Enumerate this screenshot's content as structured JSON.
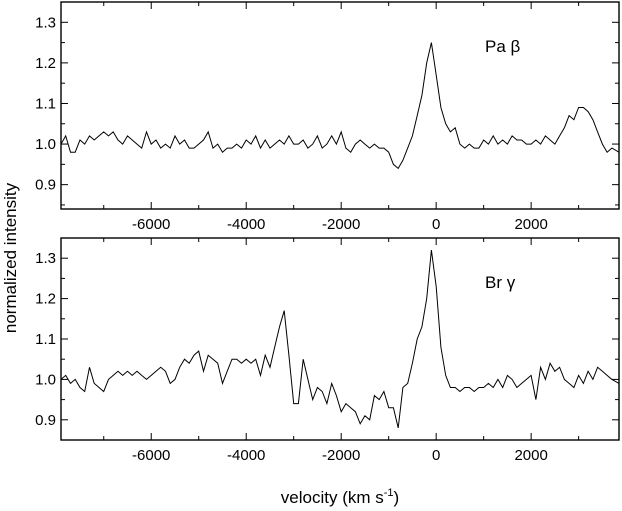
{
  "chart_data": [
    {
      "type": "line",
      "annotation": "Pa β",
      "xlim": [
        -7900,
        3850
      ],
      "ylim": [
        0.84,
        1.35
      ],
      "xticks": [
        -6000,
        -4000,
        -2000,
        0,
        2000
      ],
      "yticks": [
        0.9,
        1.0,
        1.1,
        1.2,
        1.3
      ],
      "series": [
        {
          "x": [
            -7900,
            -7800,
            -7700,
            -7600,
            -7500,
            -7400,
            -7300,
            -7200,
            -7100,
            -7000,
            -6900,
            -6800,
            -6700,
            -6600,
            -6500,
            -6400,
            -6300,
            -6200,
            -6100,
            -6000,
            -5900,
            -5800,
            -5700,
            -5600,
            -5500,
            -5400,
            -5300,
            -5200,
            -5100,
            -5000,
            -4900,
            -4800,
            -4700,
            -4600,
            -4500,
            -4400,
            -4300,
            -4200,
            -4100,
            -4000,
            -3900,
            -3800,
            -3700,
            -3600,
            -3500,
            -3400,
            -3300,
            -3200,
            -3100,
            -3000,
            -2900,
            -2800,
            -2700,
            -2600,
            -2500,
            -2400,
            -2300,
            -2200,
            -2100,
            -2000,
            -1900,
            -1800,
            -1700,
            -1600,
            -1500,
            -1400,
            -1300,
            -1200,
            -1100,
            -1000,
            -900,
            -800,
            -700,
            -600,
            -500,
            -400,
            -300,
            -200,
            -100,
            0,
            100,
            200,
            300,
            400,
            500,
            600,
            700,
            800,
            900,
            1000,
            1100,
            1200,
            1300,
            1400,
            1500,
            1600,
            1700,
            1800,
            1900,
            2000,
            2100,
            2200,
            2300,
            2400,
            2500,
            2600,
            2700,
            2800,
            2900,
            3000,
            3100,
            3200,
            3300,
            3400,
            3500,
            3600,
            3700,
            3850
          ],
          "y": [
            1.0,
            1.02,
            0.98,
            0.98,
            1.01,
            1.0,
            1.02,
            1.01,
            1.02,
            1.03,
            1.02,
            1.03,
            1.01,
            1.0,
            1.02,
            1.01,
            1.0,
            0.99,
            1.03,
            1.0,
            1.01,
            0.99,
            1.0,
            0.99,
            1.02,
            1.0,
            1.01,
            0.99,
            0.99,
            1.0,
            1.01,
            1.03,
            0.99,
            1.0,
            0.98,
            0.99,
            0.99,
            1.0,
            0.99,
            1.01,
            1.0,
            1.02,
            0.99,
            1.01,
            0.99,
            1.0,
            1.01,
            1.0,
            1.02,
            1.0,
            1.0,
            1.01,
            0.99,
            1.0,
            1.02,
            0.99,
            1.0,
            1.02,
            1.0,
            1.03,
            0.99,
            0.98,
            1.0,
            1.01,
            1.0,
            0.99,
            1.0,
            0.99,
            0.99,
            0.98,
            0.95,
            0.94,
            0.96,
            0.99,
            1.02,
            1.07,
            1.12,
            1.2,
            1.25,
            1.17,
            1.09,
            1.05,
            1.03,
            1.04,
            1.0,
            0.99,
            1.0,
            0.99,
            0.99,
            1.01,
            1.0,
            1.02,
            1.0,
            1.01,
            1.0,
            1.02,
            1.01,
            1.01,
            1.0,
            1.0,
            1.01,
            1.0,
            1.02,
            1.01,
            1.0,
            1.02,
            1.04,
            1.07,
            1.06,
            1.09,
            1.09,
            1.08,
            1.06,
            1.03,
            1.0,
            0.98,
            0.99,
            0.98
          ]
        }
      ]
    },
    {
      "type": "line",
      "annotation": "Br γ",
      "xlim": [
        -7900,
        3850
      ],
      "ylim": [
        0.85,
        1.35
      ],
      "xticks": [
        -6000,
        -4000,
        -2000,
        0,
        2000
      ],
      "yticks": [
        0.9,
        1.0,
        1.1,
        1.2,
        1.3
      ],
      "series": [
        {
          "x": [
            -7900,
            -7800,
            -7700,
            -7600,
            -7500,
            -7400,
            -7300,
            -7200,
            -7100,
            -7000,
            -6900,
            -6800,
            -6700,
            -6600,
            -6500,
            -6400,
            -6300,
            -6200,
            -6100,
            -6000,
            -5900,
            -5800,
            -5700,
            -5600,
            -5500,
            -5400,
            -5300,
            -5200,
            -5100,
            -5000,
            -4900,
            -4800,
            -4700,
            -4600,
            -4500,
            -4400,
            -4300,
            -4200,
            -4100,
            -4000,
            -3900,
            -3800,
            -3700,
            -3600,
            -3500,
            -3400,
            -3300,
            -3200,
            -3100,
            -3000,
            -2900,
            -2800,
            -2700,
            -2600,
            -2500,
            -2400,
            -2300,
            -2200,
            -2100,
            -2000,
            -1900,
            -1800,
            -1700,
            -1600,
            -1500,
            -1400,
            -1300,
            -1200,
            -1100,
            -1000,
            -900,
            -800,
            -700,
            -600,
            -500,
            -400,
            -300,
            -200,
            -100,
            0,
            100,
            200,
            300,
            400,
            500,
            600,
            700,
            800,
            900,
            1000,
            1100,
            1200,
            1300,
            1400,
            1500,
            1600,
            1700,
            1800,
            1900,
            2000,
            2100,
            2200,
            2300,
            2400,
            2500,
            2600,
            2700,
            2800,
            2900,
            3000,
            3100,
            3200,
            3300,
            3400,
            3500,
            3600,
            3700,
            3850
          ],
          "y": [
            1.0,
            1.01,
            0.99,
            1.0,
            0.98,
            0.97,
            1.03,
            0.99,
            0.98,
            0.97,
            1.0,
            1.01,
            1.02,
            1.01,
            1.02,
            1.01,
            1.02,
            1.01,
            1.0,
            1.01,
            1.02,
            1.03,
            1.02,
            0.99,
            1.0,
            1.03,
            1.05,
            1.04,
            1.06,
            1.07,
            1.02,
            1.06,
            1.05,
            1.04,
            0.99,
            1.02,
            1.05,
            1.05,
            1.04,
            1.05,
            1.04,
            1.05,
            1.01,
            1.06,
            1.03,
            1.08,
            1.13,
            1.17,
            1.06,
            0.94,
            0.94,
            1.05,
            1.0,
            0.95,
            0.98,
            0.97,
            0.94,
            0.99,
            0.96,
            0.92,
            0.94,
            0.93,
            0.92,
            0.89,
            0.91,
            0.9,
            0.96,
            0.95,
            0.97,
            0.93,
            0.93,
            0.88,
            0.98,
            0.99,
            1.04,
            1.1,
            1.13,
            1.2,
            1.32,
            1.23,
            1.08,
            1.01,
            0.98,
            0.98,
            0.97,
            0.98,
            0.98,
            0.97,
            0.98,
            0.98,
            0.99,
            0.98,
            1.0,
            0.98,
            1.01,
            1.0,
            0.98,
            0.99,
            1.0,
            1.01,
            0.95,
            1.03,
            1.0,
            1.04,
            1.02,
            1.03,
            1.0,
            0.99,
            0.98,
            1.01,
            0.99,
            1.02,
            1.0,
            1.03,
            1.02,
            1.01,
            1.0,
            0.99
          ]
        }
      ]
    }
  ],
  "xlabel_main": "velocity (km s",
  "xlabel_sup": "-1",
  "xlabel_tail": ")",
  "ylabel": "normalized intensity"
}
